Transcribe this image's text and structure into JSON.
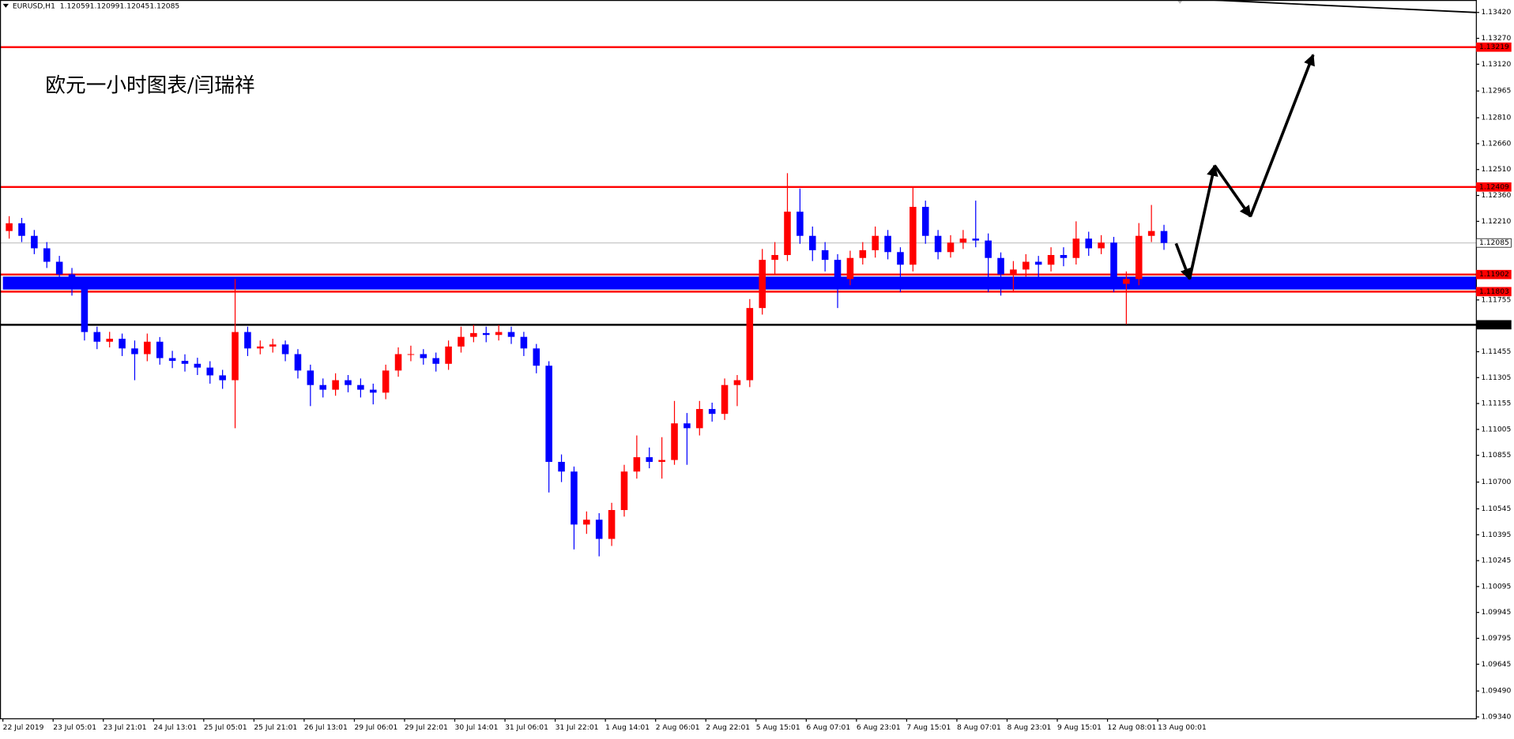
{
  "chart_data": {
    "type": "candlestick",
    "symbol": "EURUSD,H1",
    "quote": [
      1.12059,
      1.12099,
      1.12045,
      1.12085
    ],
    "annotation": "欧元一小时图表/闫瑞祥",
    "up_color": "#ff0000",
    "down_color": "#0000ff",
    "grid": false,
    "ylim": [
      1.09329,
      1.13492
    ],
    "yticks": [
      {
        "value": 1.1342,
        "label": "1.13420"
      },
      {
        "value": 1.1327,
        "label": "1.13270"
      },
      {
        "value": 1.1312,
        "label": "1.13120"
      },
      1.12965,
      {
        "value": 1.1281,
        "label": "1.12810"
      },
      {
        "value": 1.1266,
        "label": "1.12660"
      },
      {
        "value": 1.1251,
        "label": "1.12510"
      },
      {
        "value": 1.1236,
        "label": "1.12360"
      },
      {
        "value": 1.1221,
        "label": "1.12210"
      },
      1.11755,
      1.11455,
      1.11305,
      1.11155,
      1.11005,
      1.10855,
      {
        "value": 1.107,
        "label": "1.10700"
      },
      1.10545,
      1.10395,
      1.10245,
      1.10095,
      1.09945,
      1.09795,
      1.09645,
      {
        "value": 1.0949,
        "label": "1.09490"
      },
      {
        "value": 1.0934,
        "label": "1.09340"
      }
    ],
    "levels": [
      {
        "value": 1.13219,
        "color": "#ff0000"
      },
      {
        "value": 1.12409,
        "color": "#ff0000"
      },
      {
        "value": 1.12085,
        "color": "#c0c0c0"
      },
      {
        "value": 1.11902,
        "color": "#ff0000"
      },
      {
        "value": 1.11803,
        "color": "#ff0000"
      },
      {
        "value": 1.11611,
        "color": "#000000"
      }
    ],
    "zones": [
      {
        "color": "#0000ff",
        "range": [
          1.1189,
          1.11815
        ]
      }
    ],
    "time_labels": [
      "22 Jul 2019",
      "23 Jul 05:01",
      "23 Jul 21:01",
      "24 Jul 13:01",
      "25 Jul 05:01",
      "25 Jul 21:01",
      "26 Jul 13:01",
      "29 Jul 06:01",
      "29 Jul 22:01",
      "30 Jul 14:01",
      "31 Jul 06:01",
      "31 Jul 22:01",
      "1 Aug 14:01",
      "2 Aug 06:01",
      "2 Aug 22:01",
      "5 Aug 15:01",
      "6 Aug 07:01",
      "6 Aug 23:01",
      "7 Aug 15:01",
      "8 Aug 07:01",
      "8 Aug 23:01",
      "9 Aug 15:01",
      "12 Aug 08:01",
      "13 Aug 00:01"
    ],
    "ohlc": [
      [
        1.12154,
        1.1224,
        1.1211,
        1.12199
      ],
      [
        1.12199,
        1.1223,
        1.1209,
        1.12126
      ],
      [
        1.12126,
        1.1216,
        1.1202,
        1.12054
      ],
      [
        1.12054,
        1.1209,
        1.1194,
        1.11976
      ],
      [
        1.11976,
        1.1201,
        1.1186,
        1.11903
      ],
      [
        1.11903,
        1.1194,
        1.1178,
        1.1182
      ],
      [
        1.1182,
        1.1185,
        1.1152,
        1.11569
      ],
      [
        1.11569,
        1.116,
        1.1147,
        1.11513
      ],
      [
        1.11513,
        1.1157,
        1.1148,
        1.1153
      ],
      [
        1.1153,
        1.1156,
        1.1143,
        1.11474
      ],
      [
        1.11474,
        1.1152,
        1.1129,
        1.11441
      ],
      [
        1.11441,
        1.1156,
        1.114,
        1.11513
      ],
      [
        1.11513,
        1.1154,
        1.1138,
        1.11418
      ],
      [
        1.11418,
        1.1146,
        1.1136,
        1.11402
      ],
      [
        1.11402,
        1.1144,
        1.1134,
        1.11385
      ],
      [
        1.11385,
        1.1142,
        1.1132,
        1.11363
      ],
      [
        1.11363,
        1.114,
        1.1127,
        1.11318
      ],
      [
        1.11318,
        1.1135,
        1.1124,
        1.1129
      ],
      [
        1.1129,
        1.11876,
        1.11012,
        1.11569
      ],
      [
        1.11569,
        1.116,
        1.1143,
        1.11474
      ],
      [
        1.11474,
        1.1152,
        1.1144,
        1.11485
      ],
      [
        1.11485,
        1.1153,
        1.1145,
        1.11497
      ],
      [
        1.11497,
        1.1152,
        1.114,
        1.11441
      ],
      [
        1.11441,
        1.1147,
        1.113,
        1.11346
      ],
      [
        1.11346,
        1.1138,
        1.1114,
        1.11262
      ],
      [
        1.11262,
        1.113,
        1.1119,
        1.11235
      ],
      [
        1.11235,
        1.1133,
        1.112,
        1.1129
      ],
      [
        1.1129,
        1.1132,
        1.1122,
        1.11262
      ],
      [
        1.11262,
        1.113,
        1.1119,
        1.11235
      ],
      [
        1.11235,
        1.1127,
        1.1115,
        1.11218
      ],
      [
        1.11218,
        1.1138,
        1.1118,
        1.11346
      ],
      [
        1.11346,
        1.1148,
        1.1131,
        1.11441
      ],
      [
        1.11441,
        1.1149,
        1.114,
        1.11441
      ],
      [
        1.11441,
        1.1147,
        1.1138,
        1.11418
      ],
      [
        1.11418,
        1.1145,
        1.1134,
        1.11385
      ],
      [
        1.11385,
        1.1152,
        1.1135,
        1.11485
      ],
      [
        1.11485,
        1.116,
        1.1145,
        1.11541
      ],
      [
        1.11541,
        1.1161,
        1.1151,
        1.11563
      ],
      [
        1.11563,
        1.116,
        1.1151,
        1.11552
      ],
      [
        1.11552,
        1.1161,
        1.1152,
        1.11569
      ],
      [
        1.11569,
        1.116,
        1.115,
        1.11541
      ],
      [
        1.11541,
        1.1157,
        1.1143,
        1.11474
      ],
      [
        1.11474,
        1.115,
        1.1133,
        1.11374
      ],
      [
        1.11374,
        1.114,
        1.1064,
        1.10817
      ],
      [
        1.10817,
        1.1086,
        1.107,
        1.10761
      ],
      [
        1.10761,
        1.1079,
        1.1031,
        1.10454
      ],
      [
        1.10454,
        1.1053,
        1.104,
        1.10482
      ],
      [
        1.10482,
        1.1052,
        1.1027,
        1.10371
      ],
      [
        1.10371,
        1.1058,
        1.1033,
        1.10538
      ],
      [
        1.10538,
        1.108,
        1.105,
        1.10761
      ],
      [
        1.10761,
        1.1097,
        1.1072,
        1.10844
      ],
      [
        1.10844,
        1.109,
        1.1078,
        1.10817
      ],
      [
        1.10817,
        1.1096,
        1.1072,
        1.10828
      ],
      [
        1.10828,
        1.1117,
        1.108,
        1.1104
      ],
      [
        1.1104,
        1.111,
        1.108,
        1.11012
      ],
      [
        1.11012,
        1.1117,
        1.1097,
        1.11123
      ],
      [
        1.11123,
        1.1116,
        1.1105,
        1.11095
      ],
      [
        1.11095,
        1.113,
        1.1106,
        1.11262
      ],
      [
        1.11262,
        1.1132,
        1.1114,
        1.1129
      ],
      [
        1.1129,
        1.1176,
        1.1125,
        1.11708
      ],
      [
        1.11708,
        1.1205,
        1.1167,
        1.11987
      ],
      [
        1.11987,
        1.1209,
        1.119,
        1.12015
      ],
      [
        1.12015,
        1.12489,
        1.1198,
        1.12266
      ],
      [
        1.12266,
        1.124,
        1.1208,
        1.12126
      ],
      [
        1.12126,
        1.1218,
        1.1198,
        1.12043
      ],
      [
        1.12043,
        1.1209,
        1.1192,
        1.11987
      ],
      [
        1.11987,
        1.1202,
        1.11708,
        1.11876
      ],
      [
        1.11876,
        1.1204,
        1.1184,
        1.11998
      ],
      [
        1.11998,
        1.1209,
        1.1196,
        1.12043
      ],
      [
        1.12043,
        1.1218,
        1.12,
        1.12126
      ],
      [
        1.12126,
        1.1216,
        1.1199,
        1.12032
      ],
      [
        1.12032,
        1.1206,
        1.118,
        1.11959
      ],
      [
        1.11959,
        1.12405,
        1.1192,
        1.12294
      ],
      [
        1.12294,
        1.1233,
        1.1208,
        1.12126
      ],
      [
        1.12126,
        1.1216,
        1.1199,
        1.12032
      ],
      [
        1.12032,
        1.1213,
        1.12,
        1.12087
      ],
      [
        1.12087,
        1.1216,
        1.1205,
        1.1211
      ],
      [
        1.1211,
        1.1233,
        1.1206,
        1.12099
      ],
      [
        1.12099,
        1.1214,
        1.118,
        1.11998
      ],
      [
        1.11998,
        1.1203,
        1.1178,
        1.11903
      ],
      [
        1.11903,
        1.1198,
        1.118,
        1.11931
      ],
      [
        1.11931,
        1.1202,
        1.1189,
        1.11976
      ],
      [
        1.11976,
        1.1201,
        1.1183,
        1.11959
      ],
      [
        1.11959,
        1.1206,
        1.1192,
        1.12015
      ],
      [
        1.12015,
        1.1206,
        1.1195,
        1.11998
      ],
      [
        1.11998,
        1.1221,
        1.1196,
        1.1211
      ],
      [
        1.1211,
        1.1215,
        1.1201,
        1.12054
      ],
      [
        1.12054,
        1.1213,
        1.1202,
        1.12087
      ],
      [
        1.12087,
        1.1212,
        1.118,
        1.11848
      ],
      [
        1.11848,
        1.1192,
        1.11614,
        1.11876
      ],
      [
        1.11876,
        1.122,
        1.1184,
        1.12126
      ],
      [
        1.12126,
        1.12305,
        1.1209,
        1.12154
      ],
      [
        1.12154,
        1.1219,
        1.12045,
        1.12085
      ]
    ]
  }
}
